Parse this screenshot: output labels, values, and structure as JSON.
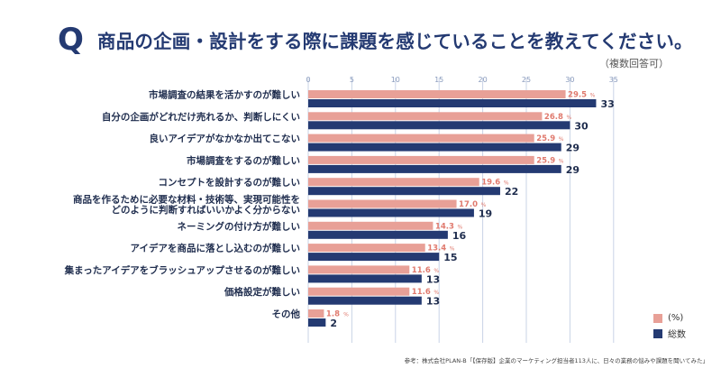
{
  "header": {
    "q_mark": "Q",
    "title": "商品の企画・設計をする際に課題を感じていることを教えてください。",
    "subtitle": "（複数回答可）"
  },
  "legend": {
    "percent_label": "(%)",
    "count_label": "総数"
  },
  "source": "参考：株式会社PLAN-B「【保存版】企業のマーケティング担当者113人に、日々の業務の悩みや課題を聞いてみた」",
  "colors": {
    "percent_bar": "#e8a097",
    "percent_text": "#e07a6e",
    "count_bar": "#243a72",
    "grid": "#c9d3e6",
    "axis_text": "#8a9bbd"
  },
  "chart_data": {
    "type": "bar",
    "orientation": "horizontal",
    "xlim": [
      0,
      35
    ],
    "xticks": [
      0,
      5,
      10,
      15,
      20,
      25,
      30,
      35
    ],
    "categories": [
      [
        "市場調査の結果を活かすのが難しい"
      ],
      [
        "自分の企画がどれだけ売れるか、判断しにくい"
      ],
      [
        "良いアイデアがなかなか出てこない"
      ],
      [
        "市場調査をするのが難しい"
      ],
      [
        "コンセプトを設計するのが難しい"
      ],
      [
        "商品を作るために必要な材料・技術等、実現可能性を",
        "どのように判断すればいいかよく分からない"
      ],
      [
        "ネーミングの付け方が難しい"
      ],
      [
        "アイデアを商品に落とし込むのが難しい"
      ],
      [
        "集まったアイデアをブラッシュアップさせるのが難しい"
      ],
      [
        "価格設定が難しい"
      ],
      [
        "その他"
      ]
    ],
    "series": [
      {
        "name": "(%)",
        "unit": "%",
        "values": [
          29.5,
          26.8,
          25.9,
          25.9,
          19.6,
          17.0,
          14.3,
          13.4,
          11.6,
          11.6,
          1.8
        ],
        "labels": [
          "29.5",
          "26.8",
          "25.9",
          "25.9",
          "19.6",
          "17.0",
          "14.3",
          "13.4",
          "11.6",
          "11.6",
          "1.8"
        ]
      },
      {
        "name": "総数",
        "values": [
          33,
          30,
          29,
          29,
          22,
          19,
          16,
          15,
          13,
          13,
          2
        ],
        "labels": [
          "33",
          "30",
          "29",
          "29",
          "22",
          "19",
          "16",
          "15",
          "13",
          "13",
          "2"
        ]
      }
    ],
    "grid": true,
    "legend_position": "bottom-right"
  }
}
